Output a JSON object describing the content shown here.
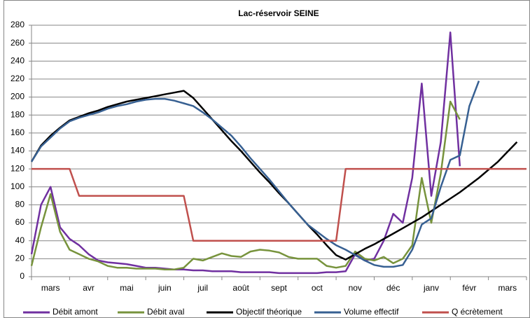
{
  "chart_data": {
    "type": "line",
    "title": "Lac-réservoir SEINE",
    "categories": [
      "mars",
      "avr",
      "mai",
      "juin",
      "juil",
      "août",
      "sept",
      "oct",
      "nov",
      "déc",
      "janv",
      "févr",
      "mars"
    ],
    "x": [
      0,
      0.25,
      0.5,
      0.75,
      1,
      1.25,
      1.5,
      1.75,
      2,
      2.25,
      2.5,
      2.75,
      3,
      3.25,
      3.5,
      3.75,
      4,
      4.25,
      4.5,
      4.75,
      5,
      5.25,
      5.5,
      5.75,
      6,
      6.25,
      6.5,
      6.75,
      7,
      7.25,
      7.5,
      7.75,
      8,
      8.25,
      8.5,
      8.75,
      9,
      9.25,
      9.5,
      9.75,
      10,
      10.25,
      10.5,
      10.75,
      11,
      11.25,
      11.5,
      11.75,
      12,
      12.25,
      12.5,
      12.75,
      13
    ],
    "xlim": [
      0,
      13
    ],
    "ylim": [
      0,
      280
    ],
    "yticks": [
      0,
      20,
      40,
      60,
      80,
      100,
      120,
      140,
      160,
      180,
      200,
      220,
      240,
      260,
      280
    ],
    "grid": true,
    "legend": "bottom",
    "series": [
      {
        "name": "Débit amont",
        "color": "#7030a0",
        "values": [
          25,
          80,
          100,
          55,
          42,
          35,
          25,
          18,
          16,
          15,
          14,
          12,
          10,
          10,
          9,
          8,
          8,
          7,
          7,
          6,
          6,
          6,
          5,
          5,
          5,
          5,
          4,
          4,
          4,
          4,
          4,
          5,
          5,
          6,
          25,
          18,
          20,
          40,
          70,
          60,
          110,
          215,
          90,
          150,
          272,
          123,
          null,
          null,
          null,
          null,
          null,
          null,
          null
        ]
      },
      {
        "name": "Débit aval",
        "color": "#77933c",
        "values": [
          12,
          55,
          92,
          50,
          30,
          25,
          20,
          17,
          12,
          10,
          10,
          9,
          9,
          9,
          8,
          8,
          10,
          20,
          18,
          22,
          26,
          23,
          22,
          28,
          30,
          29,
          27,
          22,
          20,
          20,
          20,
          12,
          10,
          12,
          28,
          20,
          18,
          22,
          15,
          20,
          35,
          110,
          60,
          115,
          195,
          175,
          null,
          null,
          null,
          null,
          null,
          null,
          null
        ]
      },
      {
        "name": "Objectif théorique",
        "color": "#000000",
        "values": [
          128,
          146,
          157,
          166,
          174,
          178,
          182,
          185,
          189,
          192,
          195,
          197,
          199,
          201,
          203,
          205,
          207,
          199,
          187,
          175,
          163,
          151,
          140,
          128,
          116,
          105,
          93,
          82,
          70,
          58,
          47,
          35,
          24,
          19,
          25,
          31,
          36,
          42,
          48,
          54,
          60,
          66,
          73,
          80,
          87,
          94,
          102,
          110,
          119,
          128,
          139,
          150,
          null
        ]
      },
      {
        "name": "Volume effectif",
        "color": "#376092",
        "values": [
          128,
          145,
          155,
          165,
          173,
          177,
          180,
          183,
          187,
          190,
          192,
          195,
          197,
          198,
          198,
          196,
          193,
          190,
          183,
          175,
          166,
          157,
          145,
          132,
          120,
          108,
          95,
          82,
          70,
          58,
          50,
          42,
          35,
          30,
          24,
          18,
          13,
          11,
          11,
          13,
          30,
          58,
          65,
          100,
          130,
          135,
          190,
          218,
          null,
          null,
          null,
          null,
          null
        ]
      },
      {
        "name": "Q écrètement",
        "color": "#c0504d",
        "values": [
          120,
          120,
          120,
          120,
          120,
          90,
          90,
          90,
          90,
          90,
          90,
          90,
          90,
          90,
          90,
          90,
          90,
          40,
          40,
          40,
          40,
          40,
          40,
          40,
          40,
          40,
          40,
          40,
          40,
          40,
          40,
          40,
          40,
          120,
          120,
          120,
          120,
          120,
          120,
          120,
          120,
          120,
          120,
          120,
          120,
          120,
          120,
          120,
          120,
          120,
          120,
          120,
          120
        ]
      }
    ]
  }
}
